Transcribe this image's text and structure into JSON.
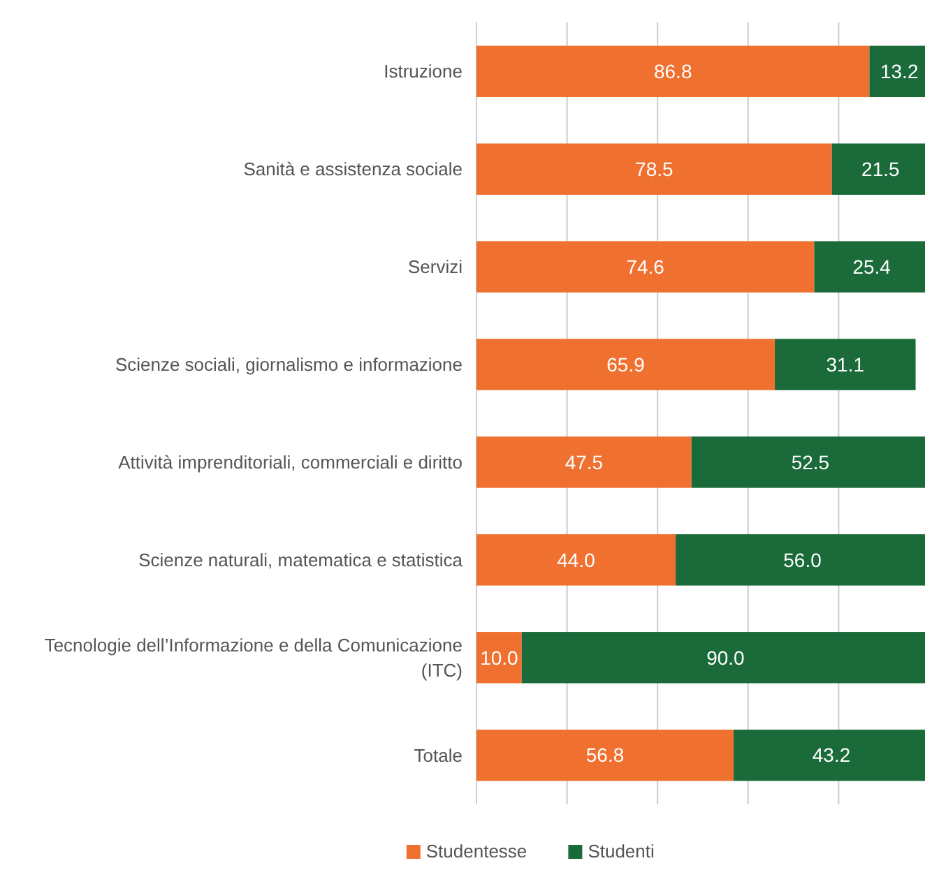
{
  "chart_data": {
    "type": "bar",
    "orientation": "horizontal",
    "stacked": true,
    "categories": [
      "Istruzione",
      "Sanità e assistenza sociale",
      "Servizi",
      "Scienze sociali, giornalismo e informazione",
      "Attività imprenditoriali, commerciali e diritto",
      "Scienze naturali, matematica e statistica",
      "Tecnologie dell’Informazione e della Comunicazione (ITC)",
      "Totale"
    ],
    "series": [
      {
        "name": "Studentesse",
        "color": "#f07030",
        "values": [
          86.8,
          78.5,
          74.6,
          65.9,
          47.5,
          44.0,
          10.0,
          56.8
        ],
        "value_labels": [
          "86.8",
          "78.5",
          "74.6",
          "65.9",
          "47.5",
          "44.0",
          "10.0",
          "56.8"
        ]
      },
      {
        "name": "Studenti",
        "color": "#1b6b3a",
        "values": [
          13.2,
          21.5,
          25.4,
          31.1,
          52.5,
          56.0,
          90.0,
          43.2
        ],
        "value_labels": [
          "13.2",
          "21.5",
          "25.4",
          "31.1",
          "52.5",
          "56.0",
          "90.0",
          "43.2"
        ]
      }
    ],
    "xlim": [
      0,
      100
    ],
    "xticks": [
      {
        "value": 0,
        "label": null
      },
      {
        "value": 20,
        "label": null
      },
      {
        "value": 40,
        "label": null
      },
      {
        "value": 60,
        "label": null
      },
      {
        "value": 80,
        "label": null
      }
    ],
    "grid": "x",
    "legend": "bottom"
  }
}
